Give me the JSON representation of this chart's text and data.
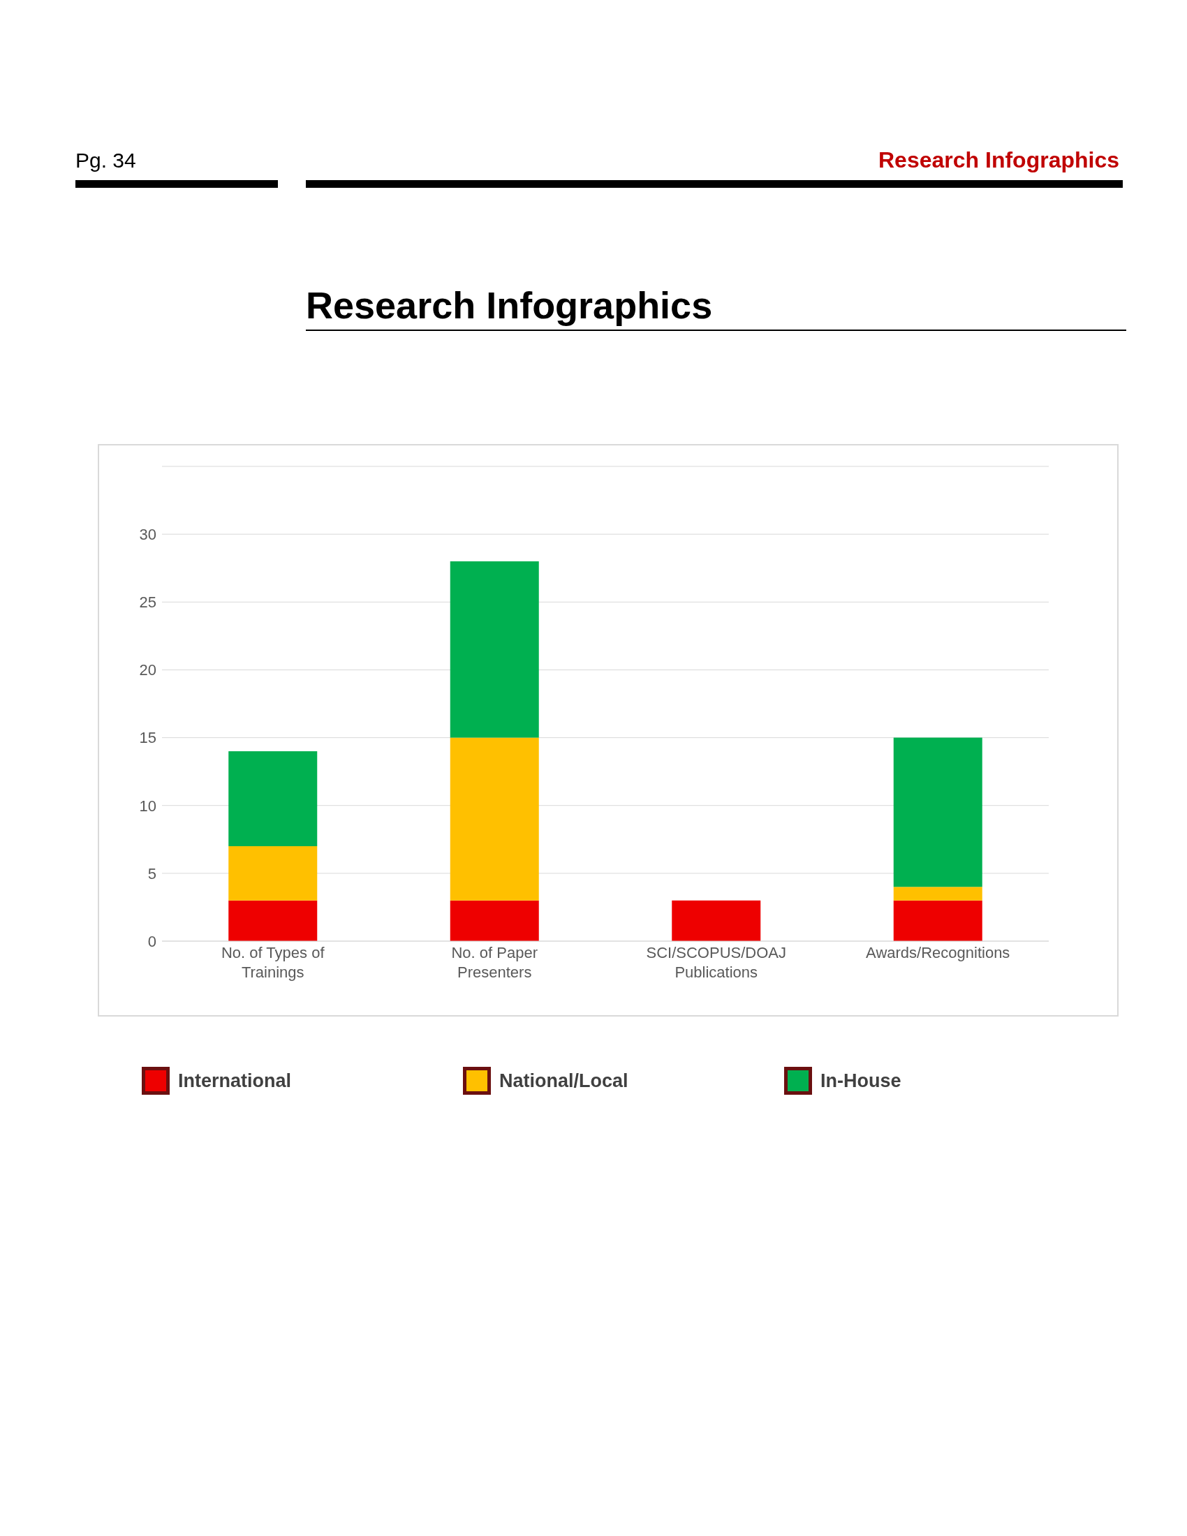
{
  "chart_data": {
    "type": "bar",
    "title": "Research Infographics",
    "annotations": [
      "Pg. 34",
      "Research Infographics"
    ],
    "categories": [
      "No. of Types of Trainings",
      "No. of Paper Presenters",
      "SCI/SCOPUS/DOAJ Publications",
      "Awards/Recognitions"
    ],
    "series": [
      {
        "name": "International",
        "color": "#ee0000",
        "values": [
          3,
          3,
          3,
          3
        ]
      },
      {
        "name": "National/Local",
        "color": "#ffc000",
        "values": [
          4,
          12,
          null,
          1
        ]
      },
      {
        "name": "In-House",
        "color": "#00b050",
        "values": [
          7,
          13,
          null,
          11
        ]
      }
    ],
    "stacked": true,
    "ylim": [
      0,
      35
    ],
    "yticks": [
      0,
      5,
      10,
      15,
      20,
      25,
      30,
      {
        "value": 35,
        "label": null
      }
    ],
    "grid": "y",
    "legend": "bottom"
  }
}
